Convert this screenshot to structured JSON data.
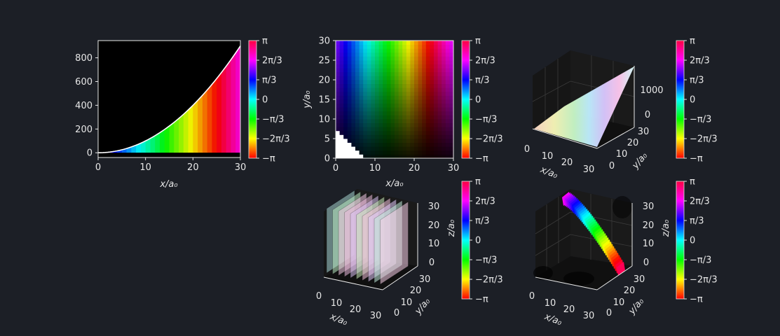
{
  "theme": {
    "background": "#1c1f26",
    "fg": "#e8e8e8"
  },
  "colorbar": {
    "labels": [
      "π",
      "2π/3",
      "π/3",
      "0",
      "−π/3",
      "−2π/3",
      "−π"
    ],
    "colormap": "hsv",
    "range": [
      "−π",
      "π"
    ]
  },
  "chart_data": [
    {
      "type": "area",
      "id": "fill1d",
      "x_range": [
        0,
        30
      ],
      "y_range": [
        0,
        900
      ],
      "xticks": [
        "0",
        "10",
        "20",
        "30"
      ],
      "yticks": [
        "0",
        "200",
        "400",
        "600",
        "800"
      ],
      "xlabel": "x/a₀",
      "ylabel": "",
      "curve": "y = x²",
      "fill": "hsv phase bands beneath curve"
    },
    {
      "type": "heatmap",
      "id": "image2d",
      "x_range": [
        0,
        30
      ],
      "y_range": [
        0,
        30
      ],
      "xticks": [
        "0",
        "10",
        "20",
        "30"
      ],
      "yticks": [
        "0",
        "5",
        "10",
        "15",
        "20",
        "25",
        "30"
      ],
      "xlabel": "x/a₀",
      "ylabel": "y/a₀",
      "hue": "phase along x",
      "brightness": "increases with y"
    },
    {
      "type": "surface",
      "id": "surface3d",
      "x_range": [
        0,
        30
      ],
      "y_range": [
        0,
        30
      ],
      "z_range": [
        0,
        1800
      ],
      "xticks": [
        "0",
        "10",
        "20",
        "30"
      ],
      "yticks": [
        "0",
        "10",
        "20",
        "30"
      ],
      "zticks": [
        "0",
        "1000"
      ],
      "xlabel": "x/a₀",
      "ylabel": "y/a₀"
    },
    {
      "type": "volume",
      "id": "volume3d",
      "x_range": [
        0,
        30
      ],
      "y_range": [
        0,
        30
      ],
      "z_range": [
        0,
        30
      ],
      "xticks": [
        "0",
        "10",
        "20",
        "30"
      ],
      "yticks": [
        "0",
        "10",
        "20",
        "30"
      ],
      "zticks": [
        "0",
        "10",
        "20",
        "30"
      ],
      "xlabel": "x/a₀",
      "ylabel": "y/a₀",
      "zlabel": "z/a₀"
    },
    {
      "type": "surface",
      "id": "isosurface3d",
      "x_range": [
        0,
        30
      ],
      "y_range": [
        0,
        30
      ],
      "z_range": [
        0,
        30
      ],
      "xticks": [
        "0",
        "10",
        "20",
        "30"
      ],
      "yticks": [
        "0",
        "10",
        "20",
        "30"
      ],
      "zticks": [
        "0",
        "10",
        "20",
        "30"
      ],
      "xlabel": "x/a₀",
      "ylabel": "y/a₀",
      "zlabel": "z/a₀"
    }
  ]
}
